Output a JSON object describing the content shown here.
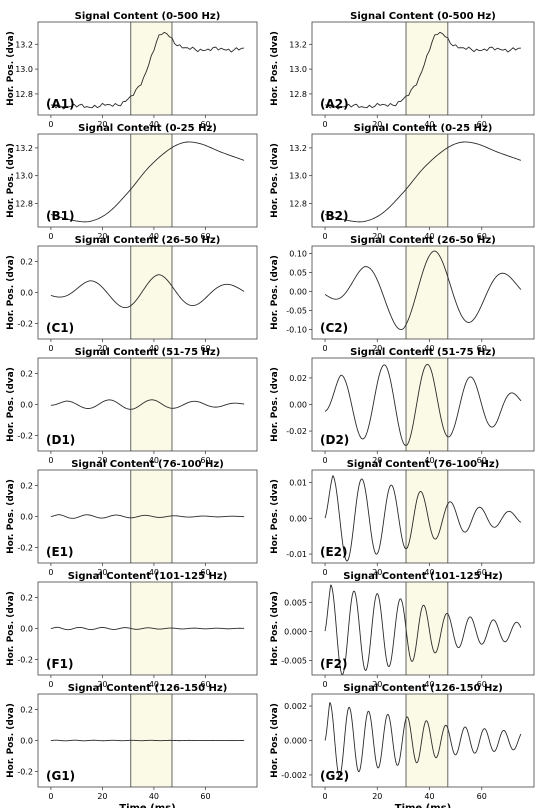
{
  "chart_data": [
    {
      "id": "A1",
      "type": "line",
      "title": "Signal Content (0-500 Hz)",
      "panel_label": "(A1)",
      "ylabel": "Hor. Pos. (dva)",
      "xlabel": "",
      "xlim": [
        -5,
        80
      ],
      "ylim": [
        12.63,
        13.38
      ],
      "xticks": [
        0,
        20,
        40,
        60
      ],
      "xtick_labels": [
        "0",
        "20",
        "40",
        "60"
      ],
      "yticks": [
        12.8,
        13.0,
        13.2
      ],
      "ytick_labels": [
        "12.8",
        "13.0",
        "13.2"
      ],
      "shaded_region": [
        31,
        47
      ],
      "signal": {
        "kind": "step",
        "start": 12.7,
        "end": 13.16,
        "t0": 37,
        "w": 3.5,
        "overshoot": 0.19,
        "ot": 43,
        "ow": 5.5,
        "noise": 0.018
      }
    },
    {
      "id": "A2",
      "type": "line",
      "title": "Signal Content (0-500 Hz)",
      "panel_label": "(A2)",
      "ylabel": "Hor. Pos. (dva)",
      "xlabel": "",
      "xlim": [
        -5,
        80
      ],
      "ylim": [
        12.63,
        13.38
      ],
      "xticks": [
        0,
        20,
        40,
        60
      ],
      "xtick_labels": [
        "0",
        "20",
        "40",
        "60"
      ],
      "yticks": [
        12.8,
        13.0,
        13.2
      ],
      "ytick_labels": [
        "12.8",
        "13.0",
        "13.2"
      ],
      "shaded_region": [
        31,
        47
      ],
      "signal": {
        "kind": "step",
        "start": 12.7,
        "end": 13.16,
        "t0": 37,
        "w": 3.5,
        "overshoot": 0.19,
        "ot": 43,
        "ow": 5.5,
        "noise": 0.018
      }
    },
    {
      "id": "B1",
      "type": "line",
      "title": "Signal Content (0-25 Hz)",
      "panel_label": "(B1)",
      "ylabel": "Hor. Pos. (dva)",
      "xlabel": "",
      "xlim": [
        -5,
        80
      ],
      "ylim": [
        12.63,
        13.3
      ],
      "xticks": [
        0,
        20,
        40,
        60
      ],
      "xtick_labels": [
        "0",
        "20",
        "40",
        "60"
      ],
      "yticks": [
        12.8,
        13.0,
        13.2
      ],
      "ytick_labels": [
        "12.8",
        "13.0",
        "13.2"
      ],
      "shaded_region": [
        31,
        47
      ],
      "signal": {
        "kind": "smooth",
        "x": [
          0,
          8,
          15,
          22,
          30,
          38,
          46,
          52,
          58,
          66,
          75
        ],
        "y": [
          12.72,
          12.68,
          12.67,
          12.73,
          12.88,
          13.06,
          13.19,
          13.24,
          13.23,
          13.17,
          13.11
        ]
      }
    },
    {
      "id": "B2",
      "type": "line",
      "title": "Signal Content (0-25 Hz)",
      "panel_label": "(B2)",
      "ylabel": "Hor. Pos. (dva)",
      "xlabel": "",
      "xlim": [
        -5,
        80
      ],
      "ylim": [
        12.63,
        13.3
      ],
      "xticks": [
        0,
        20,
        40,
        60
      ],
      "xtick_labels": [
        "0",
        "20",
        "40",
        "60"
      ],
      "yticks": [
        12.8,
        13.0,
        13.2
      ],
      "ytick_labels": [
        "12.8",
        "13.0",
        "13.2"
      ],
      "shaded_region": [
        31,
        47
      ],
      "signal": {
        "kind": "smooth",
        "x": [
          0,
          8,
          15,
          22,
          30,
          38,
          46,
          52,
          58,
          66,
          75
        ],
        "y": [
          12.72,
          12.68,
          12.67,
          12.73,
          12.88,
          13.06,
          13.19,
          13.24,
          13.23,
          13.17,
          13.11
        ]
      }
    },
    {
      "id": "C1",
      "type": "line",
      "title": "Signal Content (26-50 Hz)",
      "panel_label": "(C1)",
      "ylabel": "Hor. Pos. (dva)",
      "xlabel": "",
      "xlim": [
        -5,
        80
      ],
      "ylim": [
        -0.3,
        0.3
      ],
      "xticks": [
        0,
        20,
        40,
        60
      ],
      "xtick_labels": [
        "0",
        "20",
        "40",
        "60"
      ],
      "yticks": [
        -0.2,
        0.0,
        0.2
      ],
      "ytick_labels": [
        "-0.2",
        "0.0",
        "0.2"
      ],
      "shaded_region": [
        31,
        47
      ],
      "signal": {
        "kind": "osc",
        "period": 27,
        "phase": 15,
        "amps": [
          [
            0,
            0.02
          ],
          [
            8,
            0.05
          ],
          [
            15,
            0.075
          ],
          [
            25,
            0.09
          ],
          [
            30,
            0.1
          ],
          [
            42,
            0.115
          ],
          [
            55,
            0.085
          ],
          [
            65,
            0.06
          ],
          [
            75,
            0.04
          ]
        ]
      }
    },
    {
      "id": "C2",
      "type": "line",
      "title": "Signal Content (26-50 Hz)",
      "panel_label": "(C2)",
      "ylabel": "Hor. Pos. (dva)",
      "xlabel": "",
      "xlim": [
        -5,
        80
      ],
      "ylim": [
        -0.125,
        0.12
      ],
      "xticks": [
        0,
        20,
        40,
        60
      ],
      "xtick_labels": [
        "0",
        "20",
        "40",
        "60"
      ],
      "yticks": [
        -0.1,
        -0.05,
        0.0,
        0.05,
        0.1
      ],
      "ytick_labels": [
        "-0.10",
        "-0.05",
        "0.00",
        "0.05",
        "0.10"
      ],
      "shaded_region": [
        31,
        47
      ],
      "signal": {
        "kind": "osc",
        "period": 27,
        "phase": 15,
        "amps": [
          [
            0,
            0.008
          ],
          [
            8,
            0.04
          ],
          [
            15,
            0.065
          ],
          [
            25,
            0.088
          ],
          [
            30,
            0.104
          ],
          [
            42,
            0.107
          ],
          [
            55,
            0.082
          ],
          [
            65,
            0.058
          ],
          [
            75,
            0.03
          ]
        ]
      }
    },
    {
      "id": "D1",
      "type": "line",
      "title": "Signal Content (51-75 Hz)",
      "panel_label": "(D1)",
      "ylabel": "Hor. Pos. (dva)",
      "xlabel": "",
      "xlim": [
        -5,
        80
      ],
      "ylim": [
        -0.3,
        0.3
      ],
      "xticks": [
        0,
        20,
        40,
        60
      ],
      "xtick_labels": [
        "0",
        "20",
        "40",
        "60"
      ],
      "yticks": [
        -0.2,
        0.0,
        0.2
      ],
      "ytick_labels": [
        "-0.2",
        "0.0",
        "0.2"
      ],
      "shaded_region": [
        31,
        47
      ],
      "signal": {
        "kind": "osc",
        "period": 16.6,
        "phase": 6,
        "amps": [
          [
            0,
            0.008
          ],
          [
            6,
            0.022
          ],
          [
            23,
            0.03
          ],
          [
            32,
            0.031
          ],
          [
            41,
            0.03
          ],
          [
            49,
            0.023
          ],
          [
            58,
            0.02
          ],
          [
            66,
            0.016
          ],
          [
            75,
            0.005
          ]
        ]
      }
    },
    {
      "id": "D2",
      "type": "line",
      "title": "Signal Content (51-75 Hz)",
      "panel_label": "(D2)",
      "ylabel": "Hor. Pos. (dva)",
      "xlabel": "",
      "xlim": [
        -5,
        80
      ],
      "ylim": [
        -0.035,
        0.035
      ],
      "xticks": [
        0,
        20,
        40,
        60
      ],
      "xtick_labels": [
        "0",
        "20",
        "40",
        "60"
      ],
      "yticks": [
        -0.02,
        0.0,
        0.02
      ],
      "ytick_labels": [
        "-0.02",
        "0.00",
        "0.02"
      ],
      "shaded_region": [
        31,
        47
      ],
      "signal": {
        "kind": "osc",
        "period": 16.6,
        "phase": 6,
        "amps": [
          [
            0,
            0.008
          ],
          [
            6,
            0.022
          ],
          [
            23,
            0.03
          ],
          [
            32,
            0.031
          ],
          [
            41,
            0.03
          ],
          [
            49,
            0.023
          ],
          [
            58,
            0.02
          ],
          [
            66,
            0.016
          ],
          [
            75,
            0.005
          ]
        ]
      }
    },
    {
      "id": "E1",
      "type": "line",
      "title": "Signal Content (76-100 Hz)",
      "panel_label": "(E1)",
      "ylabel": "Hor. Pos. (dva)",
      "xlabel": "",
      "xlim": [
        -5,
        80
      ],
      "ylim": [
        -0.3,
        0.3
      ],
      "xticks": [
        0,
        20,
        40,
        60
      ],
      "xtick_labels": [
        "0",
        "20",
        "40",
        "60"
      ],
      "yticks": [
        -0.2,
        0.0,
        0.2
      ],
      "ytick_labels": [
        "-0.2",
        "0.0",
        "0.2"
      ],
      "shaded_region": [
        31,
        47
      ],
      "signal": {
        "kind": "osc",
        "period": 11.3,
        "phase": 2.8,
        "amps": [
          [
            0,
            0.004
          ],
          [
            3,
            0.012
          ],
          [
            8,
            0.012
          ],
          [
            20,
            0.01
          ],
          [
            35,
            0.008
          ],
          [
            45,
            0.005
          ],
          [
            60,
            0.003
          ],
          [
            75,
            0.0015
          ]
        ]
      }
    },
    {
      "id": "E2",
      "type": "line",
      "title": "Signal Content (76-100 Hz)",
      "panel_label": "(E2)",
      "ylabel": "Hor. Pos. (dva)",
      "xlabel": "",
      "xlim": [
        -5,
        80
      ],
      "ylim": [
        -0.0125,
        0.0135
      ],
      "xticks": [
        0,
        20,
        40,
        60
      ],
      "xtick_labels": [
        "0",
        "20",
        "40",
        "60"
      ],
      "yticks": [
        -0.01,
        0.0,
        0.01
      ],
      "ytick_labels": [
        "-0.01",
        "0.00",
        "0.01"
      ],
      "shaded_region": [
        31,
        47
      ],
      "signal": {
        "kind": "osc",
        "period": 11.3,
        "phase": 2.8,
        "amps": [
          [
            0,
            0.004
          ],
          [
            3,
            0.012
          ],
          [
            8,
            0.012
          ],
          [
            20,
            0.01
          ],
          [
            35,
            0.008
          ],
          [
            45,
            0.005
          ],
          [
            60,
            0.003
          ],
          [
            75,
            0.0015
          ]
        ]
      }
    },
    {
      "id": "F1",
      "type": "line",
      "title": "Signal Content (101-125 Hz)",
      "panel_label": "(F1)",
      "ylabel": "Hor. Pos. (dva)",
      "xlabel": "",
      "xlim": [
        -5,
        80
      ],
      "ylim": [
        -0.3,
        0.3
      ],
      "xticks": [
        0,
        20,
        40,
        60
      ],
      "xtick_labels": [
        "0",
        "20",
        "40",
        "60"
      ],
      "yticks": [
        -0.2,
        0.0,
        0.2
      ],
      "ytick_labels": [
        "-0.2",
        "0.0",
        "0.2"
      ],
      "shaded_region": [
        31,
        47
      ],
      "signal": {
        "kind": "osc",
        "period": 8.9,
        "phase": 2.2,
        "amps": [
          [
            0,
            0.003
          ],
          [
            2.2,
            0.008
          ],
          [
            10,
            0.007
          ],
          [
            20,
            0.0065
          ],
          [
            35,
            0.005
          ],
          [
            45,
            0.0032
          ],
          [
            60,
            0.0022
          ],
          [
            75,
            0.0015
          ]
        ]
      }
    },
    {
      "id": "F2",
      "type": "line",
      "title": "Signal Content (101-125 Hz)",
      "panel_label": "(F2)",
      "ylabel": "Hor. Pos. (dva)",
      "xlabel": "",
      "xlim": [
        -5,
        80
      ],
      "ylim": [
        -0.0075,
        0.0085
      ],
      "xticks": [
        0,
        20,
        40,
        60
      ],
      "xtick_labels": [
        "0",
        "20",
        "40",
        "60"
      ],
      "yticks": [
        -0.005,
        0.0,
        0.005
      ],
      "ytick_labels": [
        "-0.005",
        "0.000",
        "0.005"
      ],
      "shaded_region": [
        31,
        47
      ],
      "signal": {
        "kind": "osc",
        "period": 8.9,
        "phase": 2.2,
        "amps": [
          [
            0,
            0.003
          ],
          [
            2.2,
            0.008
          ],
          [
            10,
            0.007
          ],
          [
            20,
            0.0065
          ],
          [
            35,
            0.005
          ],
          [
            45,
            0.0032
          ],
          [
            60,
            0.0022
          ],
          [
            75,
            0.0015
          ]
        ]
      }
    },
    {
      "id": "G1",
      "type": "line",
      "title": "Signal Content (126-150 Hz)",
      "panel_label": "(G1)",
      "ylabel": "Hor. Pos. (dva)",
      "xlabel": "Time (ms)",
      "xlim": [
        -5,
        80
      ],
      "ylim": [
        -0.3,
        0.3
      ],
      "xticks": [
        0,
        20,
        40,
        60
      ],
      "xtick_labels": [
        "0",
        "20",
        "40",
        "60"
      ],
      "yticks": [
        -0.2,
        0.0,
        0.2
      ],
      "ytick_labels": [
        "-0.2",
        "0.0",
        "0.2"
      ],
      "shaded_region": [
        31,
        47
      ],
      "signal": {
        "kind": "osc",
        "period": 7.4,
        "phase": 1.85,
        "amps": [
          [
            0,
            0.0006
          ],
          [
            1.8,
            0.0022
          ],
          [
            10,
            0.0019
          ],
          [
            20,
            0.0016
          ],
          [
            35,
            0.0013
          ],
          [
            45,
            0.0009
          ],
          [
            60,
            0.0007
          ],
          [
            75,
            0.0005
          ]
        ]
      }
    },
    {
      "id": "G2",
      "type": "line",
      "title": "Signal Content (126-150 Hz)",
      "panel_label": "(G2)",
      "ylabel": "Hor. Pos. (dva)",
      "xlabel": "Time (ms)",
      "xlim": [
        -5,
        80
      ],
      "ylim": [
        -0.0027,
        0.0027
      ],
      "xticks": [
        0,
        20,
        40,
        60
      ],
      "xtick_labels": [
        "0",
        "20",
        "40",
        "60"
      ],
      "yticks": [
        -0.002,
        0.0,
        0.002
      ],
      "ytick_labels": [
        "-0.002",
        "0.000",
        "0.002"
      ],
      "shaded_region": [
        31,
        47
      ],
      "signal": {
        "kind": "osc",
        "period": 7.4,
        "phase": 1.85,
        "amps": [
          [
            0,
            0.0006
          ],
          [
            1.8,
            0.0022
          ],
          [
            10,
            0.0019
          ],
          [
            20,
            0.0016
          ],
          [
            35,
            0.0013
          ],
          [
            45,
            0.0009
          ],
          [
            60,
            0.0007
          ],
          [
            75,
            0.0005
          ]
        ]
      }
    }
  ],
  "style": {
    "line_color": "#2b2b2b",
    "shade_color": "#fbfae6",
    "shade_edge_color": "#555555",
    "axis_color": "#444444"
  }
}
